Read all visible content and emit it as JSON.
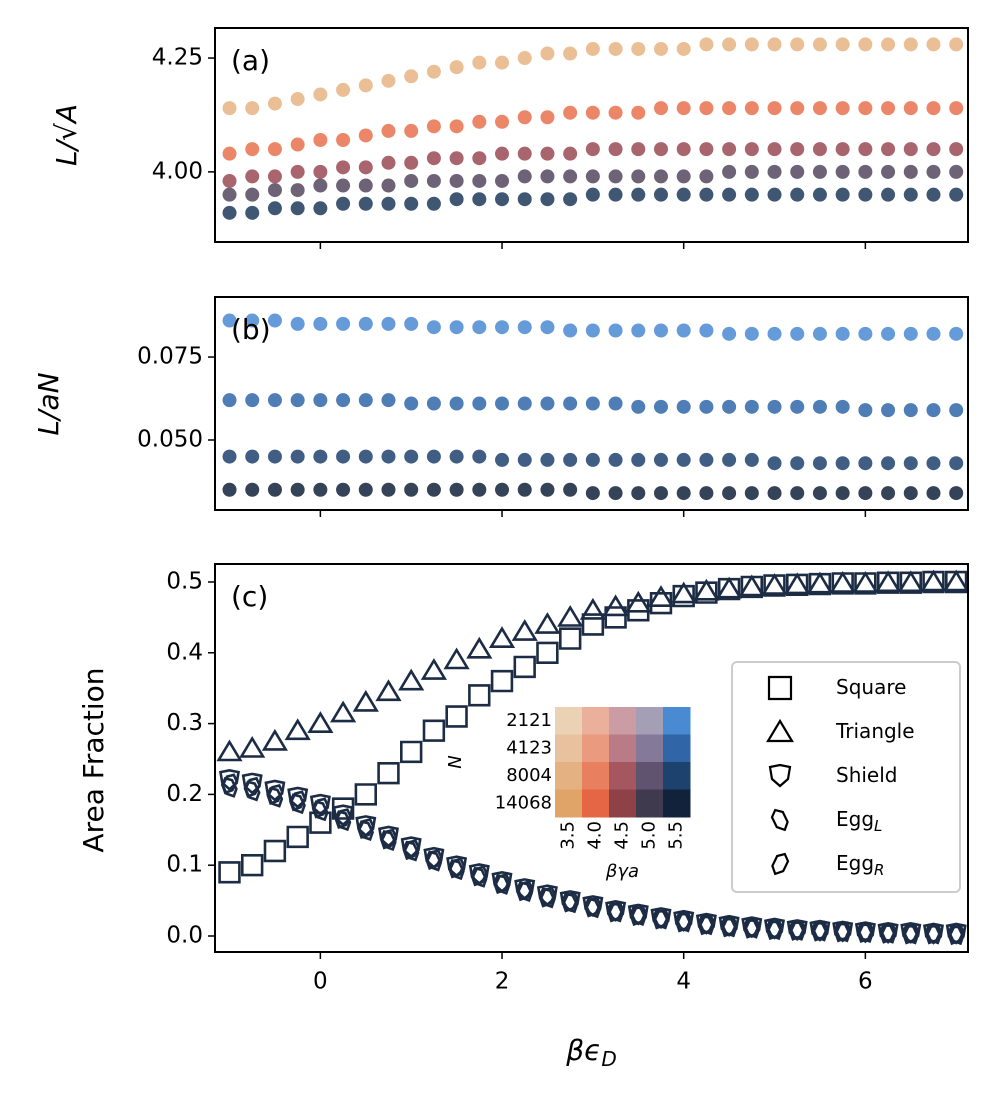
{
  "chart_data": [
    {
      "type": "scatter",
      "label": "(a)",
      "ylabel": "L/√A",
      "x": [
        -1,
        -0.75,
        -0.5,
        -0.25,
        0,
        0.25,
        0.5,
        0.75,
        1,
        1.25,
        1.5,
        1.75,
        2,
        2.25,
        2.5,
        2.75,
        3,
        3.25,
        3.5,
        3.75,
        4,
        4.25,
        4.5,
        4.75,
        5,
        5.25,
        5.5,
        5.75,
        6,
        6.25,
        6.5,
        6.75,
        7
      ],
      "xlim": [
        -1.16,
        7.13
      ],
      "xticks": [
        0,
        2,
        4,
        6
      ],
      "xticklabels": false,
      "ylim": [
        3.846,
        4.316
      ],
      "yticks": [
        {
          "value": 4,
          "label": "4.00"
        },
        {
          "value": 4.25,
          "label": "4.25"
        }
      ],
      "series": [
        {
          "color": "#e6b483",
          "values": [
            4.14,
            4.14,
            4.15,
            4.16,
            4.17,
            4.18,
            4.19,
            4.2,
            4.21,
            4.22,
            4.23,
            4.24,
            4.24,
            4.25,
            4.26,
            4.26,
            4.27,
            4.27,
            4.27,
            4.27,
            4.27,
            4.28,
            4.28,
            4.28,
            4.28,
            4.28,
            4.28,
            4.28,
            4.28,
            4.28,
            4.28,
            4.28,
            4.28
          ]
        },
        {
          "color": "#e8714f",
          "values": [
            4.04,
            4.05,
            4.05,
            4.06,
            4.07,
            4.07,
            4.08,
            4.09,
            4.09,
            4.1,
            4.1,
            4.11,
            4.11,
            4.12,
            4.12,
            4.13,
            4.13,
            4.13,
            4.13,
            4.14,
            4.14,
            4.14,
            4.14,
            4.14,
            4.14,
            4.14,
            4.14,
            4.14,
            4.14,
            4.14,
            4.14,
            4.14,
            4.14
          ]
        },
        {
          "color": "#9a4a55",
          "values": [
            3.98,
            3.99,
            3.99,
            4.0,
            4.0,
            4.01,
            4.01,
            4.02,
            4.02,
            4.03,
            4.03,
            4.03,
            4.04,
            4.04,
            4.04,
            4.04,
            4.05,
            4.05,
            4.05,
            4.05,
            4.05,
            4.05,
            4.05,
            4.05,
            4.05,
            4.05,
            4.05,
            4.05,
            4.05,
            4.05,
            4.05,
            4.05,
            4.05
          ]
        },
        {
          "color": "#54465e",
          "values": [
            3.95,
            3.95,
            3.96,
            3.96,
            3.97,
            3.97,
            3.97,
            3.97,
            3.98,
            3.98,
            3.98,
            3.98,
            3.98,
            3.99,
            3.99,
            3.99,
            3.99,
            3.99,
            3.99,
            3.99,
            3.99,
            3.99,
            4.0,
            4.0,
            4.0,
            4.0,
            4.0,
            4.0,
            4.0,
            4.0,
            4.0,
            4.0,
            4.0
          ]
        },
        {
          "color": "#1e3a5c",
          "values": [
            3.91,
            3.91,
            3.92,
            3.92,
            3.92,
            3.93,
            3.93,
            3.93,
            3.93,
            3.93,
            3.94,
            3.94,
            3.94,
            3.94,
            3.94,
            3.94,
            3.95,
            3.95,
            3.95,
            3.95,
            3.95,
            3.95,
            3.95,
            3.95,
            3.95,
            3.95,
            3.95,
            3.95,
            3.95,
            3.95,
            3.95,
            3.95,
            3.95
          ]
        }
      ]
    },
    {
      "type": "scatter",
      "label": "(b)",
      "ylabel": "L/aN",
      "x": [
        -1,
        -0.75,
        -0.5,
        -0.25,
        0,
        0.25,
        0.5,
        0.75,
        1,
        1.25,
        1.5,
        1.75,
        2,
        2.25,
        2.5,
        2.75,
        3,
        3.25,
        3.5,
        3.75,
        4,
        4.25,
        4.5,
        4.75,
        5,
        5.25,
        5.5,
        5.75,
        6,
        6.25,
        6.5,
        6.75,
        7
      ],
      "xlim": [
        -1.16,
        7.13
      ],
      "xticks": [
        0,
        2,
        4,
        6
      ],
      "xticklabels": false,
      "ylim": [
        0.0289,
        0.0931
      ],
      "yticks": [
        {
          "value": 0.05,
          "label": "0.050"
        },
        {
          "value": 0.075,
          "label": "0.075"
        }
      ],
      "series": [
        {
          "color": "#4a8ad2",
          "values": [
            0.086,
            0.086,
            0.086,
            0.085,
            0.085,
            0.085,
            0.085,
            0.085,
            0.085,
            0.084,
            0.084,
            0.084,
            0.084,
            0.084,
            0.084,
            0.083,
            0.083,
            0.083,
            0.083,
            0.083,
            0.083,
            0.083,
            0.082,
            0.082,
            0.082,
            0.082,
            0.082,
            0.082,
            0.082,
            0.082,
            0.082,
            0.082,
            0.082
          ]
        },
        {
          "color": "#3066a8",
          "values": [
            0.062,
            0.062,
            0.062,
            0.062,
            0.062,
            0.062,
            0.062,
            0.062,
            0.061,
            0.061,
            0.061,
            0.061,
            0.061,
            0.061,
            0.061,
            0.061,
            0.061,
            0.061,
            0.06,
            0.06,
            0.06,
            0.06,
            0.06,
            0.06,
            0.06,
            0.06,
            0.06,
            0.06,
            0.059,
            0.059,
            0.059,
            0.059,
            0.059
          ]
        },
        {
          "color": "#1e426e",
          "values": [
            0.045,
            0.045,
            0.045,
            0.045,
            0.045,
            0.045,
            0.045,
            0.045,
            0.045,
            0.045,
            0.045,
            0.045,
            0.044,
            0.044,
            0.044,
            0.044,
            0.044,
            0.044,
            0.044,
            0.044,
            0.044,
            0.044,
            0.044,
            0.044,
            0.043,
            0.043,
            0.043,
            0.043,
            0.043,
            0.043,
            0.043,
            0.043,
            0.043
          ]
        },
        {
          "color": "#11223a",
          "values": [
            0.035,
            0.035,
            0.035,
            0.035,
            0.035,
            0.035,
            0.035,
            0.035,
            0.035,
            0.035,
            0.035,
            0.035,
            0.035,
            0.035,
            0.035,
            0.035,
            0.034,
            0.034,
            0.034,
            0.034,
            0.034,
            0.034,
            0.034,
            0.034,
            0.034,
            0.034,
            0.034,
            0.034,
            0.034,
            0.034,
            0.034,
            0.034,
            0.034
          ]
        }
      ]
    },
    {
      "type": "scatter",
      "label": "(c)",
      "ylabel": "Area Fraction",
      "xlabel": "βϵ",
      "xlabel_sub": "D",
      "x": [
        -1,
        -0.75,
        -0.5,
        -0.25,
        0,
        0.25,
        0.5,
        0.75,
        1,
        1.25,
        1.5,
        1.75,
        2,
        2.25,
        2.5,
        2.75,
        3,
        3.25,
        3.5,
        3.75,
        4,
        4.25,
        4.5,
        4.75,
        5,
        5.25,
        5.5,
        5.75,
        6,
        6.25,
        6.5,
        6.75,
        7
      ],
      "xlim": [
        -1.16,
        7.13
      ],
      "xticks": [
        0,
        2,
        4,
        6
      ],
      "xticklabels": true,
      "ylim": [
        -0.0226,
        0.5254
      ],
      "yticks": [
        {
          "value": 0,
          "label": "0.0"
        },
        0.1,
        0.2,
        0.3,
        0.4,
        0.5
      ],
      "legend": "center right",
      "series": [
        {
          "name": "Square",
          "marker": "square",
          "color": "#1c2c44",
          "values": [
            0.09,
            0.1,
            0.12,
            0.14,
            0.16,
            0.18,
            0.2,
            0.23,
            0.26,
            0.29,
            0.31,
            0.34,
            0.36,
            0.38,
            0.4,
            0.42,
            0.44,
            0.45,
            0.46,
            0.47,
            0.48,
            0.485,
            0.49,
            0.493,
            0.495,
            0.496,
            0.497,
            0.498,
            0.498,
            0.499,
            0.499,
            0.5,
            0.5
          ]
        },
        {
          "name": "Triangle",
          "marker": "triangle",
          "color": "#1c2c44",
          "values": [
            0.26,
            0.265,
            0.275,
            0.29,
            0.3,
            0.315,
            0.33,
            0.345,
            0.36,
            0.375,
            0.39,
            0.405,
            0.42,
            0.43,
            0.44,
            0.45,
            0.46,
            0.465,
            0.47,
            0.478,
            0.483,
            0.487,
            0.49,
            0.493,
            0.495,
            0.496,
            0.497,
            0.498,
            0.498,
            0.499,
            0.499,
            0.5,
            0.5
          ]
        },
        {
          "name": "Shield",
          "marker": "shield",
          "color": "#1c2c44",
          "values": [
            0.22,
            0.215,
            0.205,
            0.195,
            0.185,
            0.17,
            0.155,
            0.14,
            0.125,
            0.11,
            0.098,
            0.087,
            0.076,
            0.066,
            0.057,
            0.049,
            0.042,
            0.035,
            0.03,
            0.025,
            0.021,
            0.017,
            0.014,
            0.012,
            0.01,
            0.008,
            0.007,
            0.006,
            0.005,
            0.004,
            0.004,
            0.003,
            0.003
          ]
        },
        {
          "name": "Egg",
          "sub": "L",
          "marker": "eggL",
          "color": "#1c2c44",
          "values": [
            0.21,
            0.205,
            0.196,
            0.187,
            0.177,
            0.163,
            0.149,
            0.135,
            0.12,
            0.106,
            0.094,
            0.083,
            0.073,
            0.063,
            0.054,
            0.047,
            0.04,
            0.034,
            0.029,
            0.024,
            0.02,
            0.016,
            0.013,
            0.011,
            0.009,
            0.008,
            0.007,
            0.006,
            0.005,
            0.004,
            0.003,
            0.003,
            0.002
          ]
        },
        {
          "name": "Egg",
          "sub": "R",
          "marker": "eggR",
          "color": "#1c2c44",
          "values": [
            0.215,
            0.21,
            0.2,
            0.191,
            0.181,
            0.166,
            0.152,
            0.137,
            0.122,
            0.108,
            0.096,
            0.085,
            0.074,
            0.064,
            0.055,
            0.048,
            0.041,
            0.034,
            0.029,
            0.024,
            0.02,
            0.016,
            0.013,
            0.011,
            0.009,
            0.008,
            0.007,
            0.006,
            0.005,
            0.004,
            0.003,
            0.003,
            0.002
          ]
        }
      ],
      "inset": {
        "type": "heatmap",
        "ylabel": "N",
        "xlabel": "βγa",
        "rows": [
          "2121",
          "4123",
          "8004",
          "14068"
        ],
        "columns": [
          "3.5",
          "4.0",
          "4.5",
          "5.0",
          "5.5"
        ],
        "colors": [
          [
            "#ecd2b4",
            "#eab09c",
            "#cc9ca4",
            "#a59fb6",
            "#4a8ad2"
          ],
          [
            "#e8c29e",
            "#ea9a7e",
            "#b97c86",
            "#847999",
            "#3066a8"
          ],
          [
            "#e4b282",
            "#e87f5f",
            "#a4575f",
            "#60536f",
            "#1e426e"
          ],
          [
            "#e0a468",
            "#e46644",
            "#8e4248",
            "#3f3a4e",
            "#11223a"
          ]
        ]
      }
    }
  ]
}
